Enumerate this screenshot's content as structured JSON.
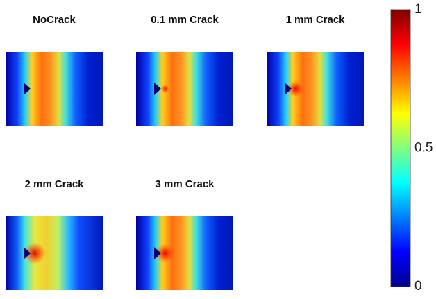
{
  "chart_data": {
    "type": "heatmap",
    "panels": [
      {
        "title": "NoCrack"
      },
      {
        "title": "0.1 mm Crack"
      },
      {
        "title": "1 mm Crack"
      },
      {
        "title": "2 mm Crack"
      },
      {
        "title": "3 mm Crack"
      }
    ],
    "colorbar": {
      "lim": [
        0,
        1
      ],
      "ticks": [
        0,
        0.5,
        1
      ]
    }
  }
}
